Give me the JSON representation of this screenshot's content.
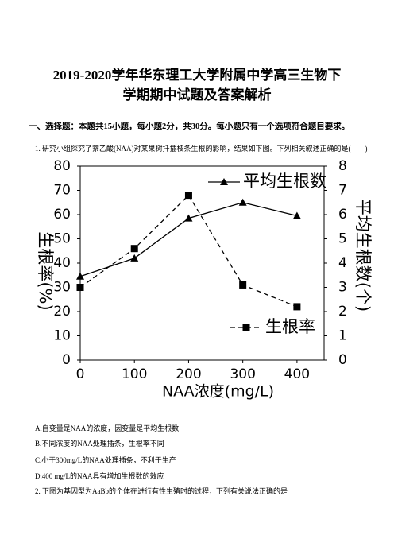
{
  "title": [
    "2019-2020学年华东理工大学附属中学高三生物下",
    "学期期中试题及答案解析"
  ],
  "section": "一、选择题：本题共15小题，每小题2分，共30分。每小题只有一个选项符合题目要求。",
  "question1": "1. 研究小组探究了萘乙酸(NAA)对某果树扦插枝条生根的影响，结果如下图。下列相关叙述正确的是(　　)",
  "options": [
    "A.自变量是NAA的浓度，因变量是平均生根数",
    "B.不同浓度的NAA处理插条，生根率不同",
    "C.小于300mg/L的NAA处理插条，不利于生产",
    "D.400 mg/L的NAA具有增加生根数的效应"
  ],
  "question2": "2. 下图为基因型为AaBb的个体在进行有性生殖时的过程，下列有关说法正确的是",
  "chart_data": {
    "type": "line",
    "x_label": "NAA浓度(mg/L)",
    "y_label": "生根率(%)",
    "y2_label": "平均生根数(个)",
    "x": [
      0,
      100,
      200,
      300,
      400
    ],
    "xlim": [
      0,
      450
    ],
    "xticks": [
      0,
      100,
      200,
      300,
      400
    ],
    "ylim": [
      0,
      80
    ],
    "yticks": [
      0,
      10,
      20,
      30,
      40,
      50,
      60,
      70,
      80
    ],
    "y2lim": [
      0,
      8
    ],
    "y2ticks": [
      0,
      1,
      2,
      3,
      4,
      5,
      6,
      7,
      8
    ],
    "series": [
      {
        "name": "平均生根数",
        "color": "#000000",
        "marker": "triangle",
        "dash": false,
        "axis": "y2",
        "values": [
          3.45,
          4.2,
          5.85,
          6.5,
          5.95
        ]
      },
      {
        "name": "生根率",
        "color": "#000000",
        "marker": "square",
        "dash": true,
        "values": [
          30,
          46,
          68,
          31,
          22
        ]
      }
    ]
  }
}
